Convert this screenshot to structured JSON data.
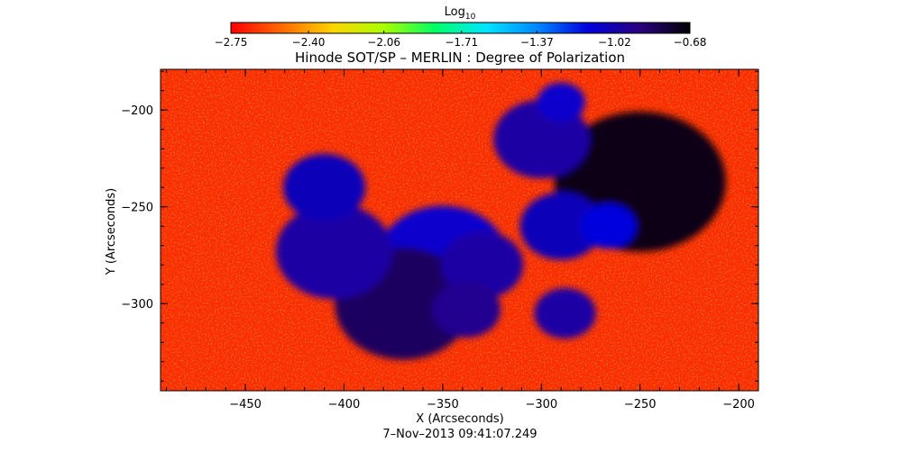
{
  "chart_data": {
    "type": "heatmap",
    "title": "Hinode SOT/SP – MERLIN : Degree of Polarization",
    "xlabel": "X (Arcseconds)",
    "ylabel": "Y (Arcseconds)",
    "timestamp": "7–Nov–2013 09:41:07.249",
    "colorbar": {
      "label_base": "Log",
      "label_sub": "10",
      "min": -2.75,
      "max": -0.68,
      "ticks": [
        "−2.75",
        "−2.40",
        "−2.06",
        "−1.71",
        "−1.37",
        "−1.02",
        "−0.68"
      ],
      "tick_values": [
        -2.75,
        -2.4,
        -2.06,
        -1.71,
        -1.37,
        -1.02,
        -0.68
      ],
      "colormap": [
        "#ff0000",
        "#ff6a00",
        "#ffd400",
        "#aaff00",
        "#00ff66",
        "#00e5ff",
        "#0088ff",
        "#0000dd",
        "#2a0080",
        "#000000"
      ]
    },
    "xlim": [
      -493,
      -190
    ],
    "ylim": [
      -345,
      -179
    ],
    "xticks": [
      -450,
      -400,
      -350,
      -300,
      -250,
      -200
    ],
    "xtick_labels": [
      "−450",
      "−400",
      "−350",
      "−300",
      "−250",
      "−200"
    ],
    "yticks": [
      -200,
      -250,
      -300
    ],
    "ytick_labels": [
      "−200",
      "−250",
      "−300"
    ],
    "features": [
      {
        "x": -250,
        "y": -237,
        "value": -0.72
      },
      {
        "x": -350,
        "y": -277,
        "value": -1.1
      },
      {
        "x": -370,
        "y": -300,
        "value": -0.85
      },
      {
        "x": -405,
        "y": -273,
        "value": -1.0
      },
      {
        "x": -410,
        "y": -240,
        "value": -1.05
      },
      {
        "x": -300,
        "y": -215,
        "value": -1.0
      },
      {
        "x": -330,
        "y": -280,
        "value": -1.0
      },
      {
        "x": -338,
        "y": -303,
        "value": -0.95
      },
      {
        "x": -290,
        "y": -260,
        "value": -1.05
      },
      {
        "x": -288,
        "y": -305,
        "value": -1.0
      },
      {
        "x": -266,
        "y": -260,
        "value": -1.15
      },
      {
        "x": -290,
        "y": -196,
        "value": -1.1
      }
    ]
  }
}
